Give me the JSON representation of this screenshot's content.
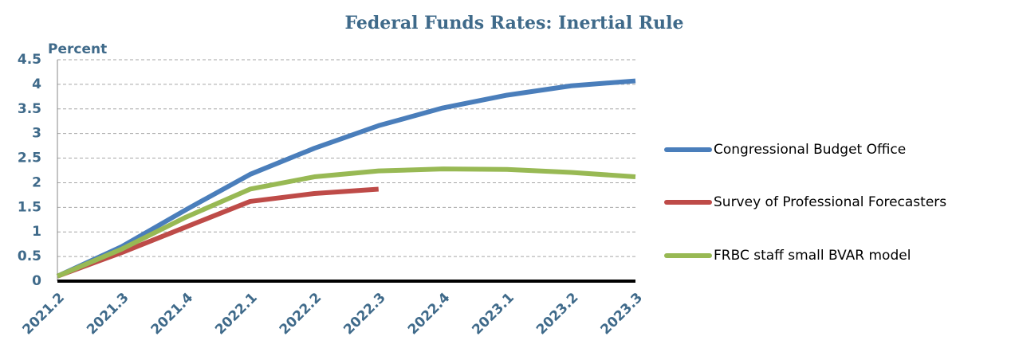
{
  "chart_data": {
    "type": "line",
    "title": "Federal Funds Rates: Inertial Rule",
    "y_label": "Percent",
    "categories": [
      "2021.2",
      "2021.3",
      "2021.4",
      "2022.1",
      "2022.2",
      "2022.3",
      "2022.4",
      "2023.1",
      "2023.2",
      "2023.3"
    ],
    "series": [
      {
        "name": "Congressional Budget Office",
        "color": "#4a7ebb",
        "values": [
          0.1,
          0.7,
          1.45,
          2.17,
          2.7,
          3.16,
          3.52,
          3.78,
          3.97,
          4.07
        ]
      },
      {
        "name": "Survey of Professional Forecasters",
        "color": "#be4b48",
        "values": [
          0.1,
          0.58,
          1.1,
          1.62,
          1.78,
          1.87,
          null,
          null,
          null,
          null
        ]
      },
      {
        "name": "FRBC staff small BVAR model",
        "color": "#98b954",
        "values": [
          0.1,
          0.65,
          1.3,
          1.87,
          2.12,
          2.24,
          2.28,
          2.27,
          2.21,
          2.12
        ]
      }
    ],
    "ylim": [
      0,
      4.5
    ],
    "yticks": [
      0,
      0.5,
      1,
      1.5,
      2,
      2.5,
      3,
      3.5,
      4,
      4.5
    ],
    "grid": true,
    "legend": "right"
  }
}
